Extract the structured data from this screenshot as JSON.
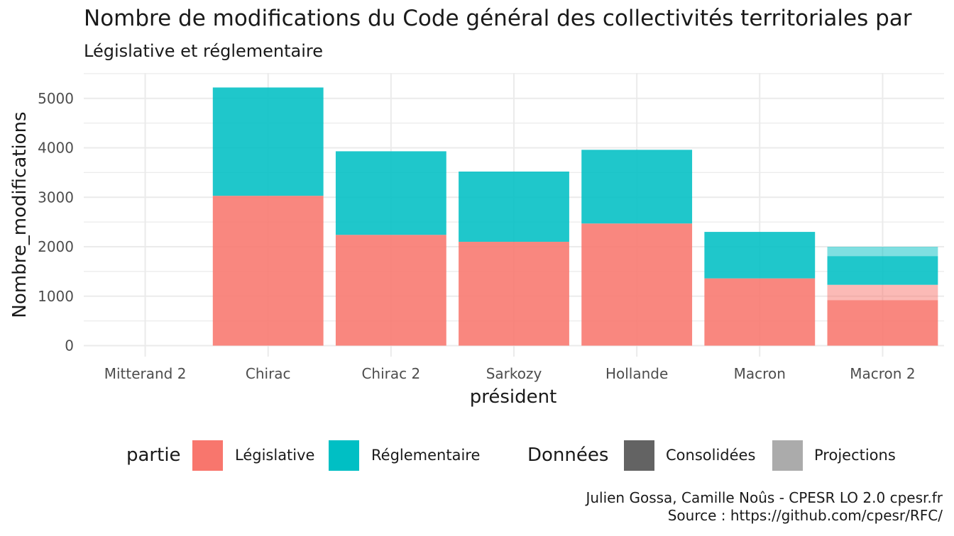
{
  "chart_data": {
    "type": "bar",
    "stacked": true,
    "title": "Nombre de modifications du Code général des collectivités territoriales par",
    "subtitle": "Législative et réglementaire",
    "xlabel": "président",
    "ylabel": "Nombre_modifications",
    "ylim": [
      0,
      5300
    ],
    "yticks": [
      0,
      1000,
      2000,
      3000,
      4000,
      5000
    ],
    "grid": true,
    "categories": [
      "Mitterand 2",
      "Chirac",
      "Chirac 2",
      "Sarkozy",
      "Hollande",
      "Macron",
      "Macron 2"
    ],
    "series": [
      {
        "name": "Législative",
        "data_kind": "Consolidées",
        "color": "#F8766D",
        "values": [
          0,
          3030,
          2240,
          2100,
          2470,
          1360,
          920
        ]
      },
      {
        "name": "Législative",
        "data_kind": "Projections",
        "color": "#F8766D",
        "values": [
          0,
          0,
          0,
          0,
          0,
          0,
          310
        ]
      },
      {
        "name": "Réglementaire",
        "data_kind": "Consolidées",
        "color": "#00BFC4",
        "values": [
          0,
          2190,
          1690,
          1420,
          1490,
          940,
          580
        ]
      },
      {
        "name": "Réglementaire",
        "data_kind": "Projections",
        "color": "#00BFC4",
        "values": [
          0,
          0,
          0,
          0,
          0,
          0,
          190
        ]
      }
    ],
    "legend": {
      "position": "bottom",
      "fill_title": "partie",
      "fill_items": [
        {
          "label": "Législative",
          "color": "#F8766D"
        },
        {
          "label": "Réglementaire",
          "color": "#00BFC4"
        }
      ],
      "alpha_title": "Données",
      "alpha_items": [
        {
          "label": "Consolidées",
          "color": "#636363"
        },
        {
          "label": "Projections",
          "color": "#ABABAB"
        }
      ]
    }
  },
  "caption": {
    "line1": "Julien Gossa, Camille Noûs - CPESR LO 2.0 cpesr.fr",
    "line2": "Source : https://github.com/cpesr/RFC/"
  }
}
